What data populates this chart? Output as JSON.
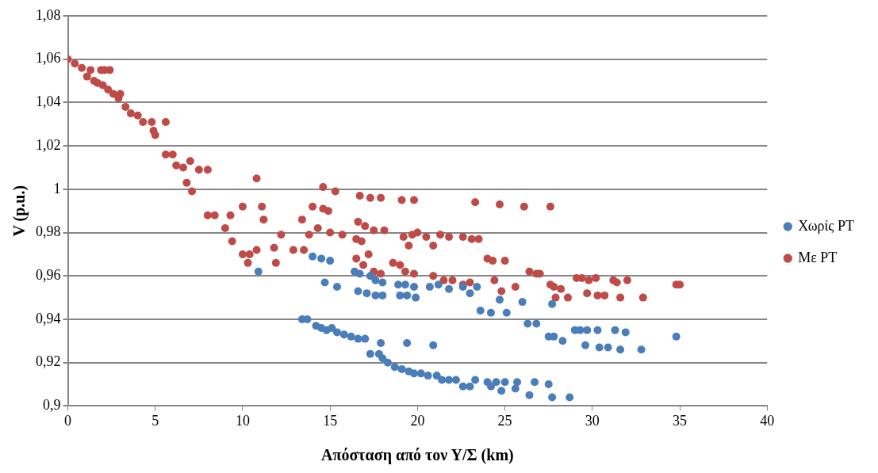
{
  "chart_data": {
    "type": "scatter",
    "xlabel": "Απόσταση από τον Υ/Σ (km)",
    "ylabel": "V (p.u.)",
    "xlim": [
      0,
      40
    ],
    "xticks": [
      0,
      5,
      10,
      15,
      20,
      25,
      30,
      35,
      40
    ],
    "ylim": [
      0.9,
      1.08
    ],
    "yticks": [
      {
        "value": 0.9,
        "label": "0,9"
      },
      {
        "value": 0.92,
        "label": "0,92"
      },
      {
        "value": 0.94,
        "label": "0,94"
      },
      {
        "value": 0.96,
        "label": "0,96"
      },
      {
        "value": 0.98,
        "label": "0,98"
      },
      {
        "value": 1,
        "label": "1"
      },
      {
        "value": 1.02,
        "label": "1,02"
      },
      {
        "value": 1.04,
        "label": "1,04"
      },
      {
        "value": 1.06,
        "label": "1,06"
      },
      {
        "value": 1.08,
        "label": "1,08"
      }
    ],
    "grid": "y",
    "legend": "right",
    "marker": "circle",
    "series": [
      {
        "name": "Χωρίς PT",
        "color": "#4a7ebb",
        "x": [
          13.4,
          13.7,
          14.2,
          14.5,
          14.8,
          15.1,
          15.4,
          15.8,
          16.2,
          16.6,
          17.0,
          17.3,
          17.8,
          18.0,
          17.9,
          18.3,
          18.7,
          19.1,
          19.5,
          19.4,
          19.8,
          20.2,
          20.6,
          20.9,
          21.1,
          21.4,
          21.8,
          22.2,
          22.6,
          23.0,
          23.3,
          24.0,
          24.2,
          24.5,
          24.8,
          25.0,
          25.6,
          25.7,
          26.4,
          26.7,
          27.5,
          27.7,
          28.7,
          10.9,
          14.0,
          14.5,
          15.0,
          14.7,
          15.4,
          16.4,
          16.7,
          17.3,
          17.6,
          18.0,
          16.6,
          17.1,
          17.6,
          18.0,
          18.9,
          19.3,
          19.8,
          19.0,
          19.4,
          19.9,
          20.7,
          21.2,
          21.8,
          22.6,
          23.4,
          23.0,
          23.6,
          24.2,
          24.7,
          25.1,
          26.0,
          26.3,
          26.8,
          27.5,
          27.7,
          27.8,
          28.3,
          29.0,
          29.3,
          29.7,
          29.6,
          30.3,
          30.4,
          30.9,
          31.3,
          31.6,
          31.9,
          32.8,
          34.8
        ],
        "values": [
          0.94,
          0.94,
          0.937,
          0.936,
          0.935,
          0.936,
          0.934,
          0.933,
          0.932,
          0.931,
          0.931,
          0.924,
          0.924,
          0.922,
          0.929,
          0.92,
          0.918,
          0.917,
          0.916,
          0.929,
          0.915,
          0.915,
          0.914,
          0.928,
          0.914,
          0.912,
          0.912,
          0.912,
          0.909,
          0.909,
          0.912,
          0.911,
          0.909,
          0.911,
          0.907,
          0.911,
          0.908,
          0.911,
          0.905,
          0.911,
          0.91,
          0.904,
          0.904,
          0.962,
          0.969,
          0.968,
          0.967,
          0.957,
          0.955,
          0.962,
          0.961,
          0.96,
          0.958,
          0.957,
          0.953,
          0.952,
          0.951,
          0.951,
          0.956,
          0.956,
          0.955,
          0.951,
          0.951,
          0.95,
          0.955,
          0.956,
          0.954,
          0.955,
          0.955,
          0.952,
          0.944,
          0.943,
          0.949,
          0.943,
          0.948,
          0.938,
          0.938,
          0.932,
          0.947,
          0.932,
          0.93,
          0.935,
          0.935,
          0.935,
          0.928,
          0.935,
          0.927,
          0.927,
          0.935,
          0.926,
          0.934,
          0.926,
          0.932
        ]
      },
      {
        "name": "Με PT",
        "color": "#be4b48",
        "x": [
          0,
          0.4,
          0.8,
          1.1,
          1.3,
          1.5,
          1.7,
          1.9,
          2.1,
          2.4,
          2.0,
          2.3,
          2.6,
          2.9,
          3.0,
          3.3,
          3.6,
          4.0,
          4.3,
          4.8,
          4.9,
          5.0,
          5.6,
          5.6,
          6.0,
          6.2,
          6.6,
          7.0,
          7.5,
          6.8,
          7.1,
          8.0,
          8.0,
          8.4,
          9.3,
          9.0,
          9.4,
          10.0,
          10.4,
          10.0,
          10.8,
          10.3,
          11.1,
          11.2,
          10.8,
          11.8,
          11.9,
          12.2,
          12.9,
          13.4,
          13.5,
          14.0,
          14.6,
          14.9,
          14.6,
          15.3,
          13.8,
          14.3,
          15.0,
          15.7,
          16.5,
          16.8,
          16.6,
          17.0,
          17.5,
          18.1,
          16.7,
          17.3,
          17.9,
          19.1,
          19.8,
          16.5,
          16.9,
          17.5,
          17.9,
          17.2,
          18.6,
          19.0,
          19.3,
          19.8,
          19.2,
          19.7,
          20.0,
          20.5,
          19.5,
          20.9,
          21.3,
          21.8,
          20.9,
          21.5,
          22.0,
          22.6,
          23.0,
          22.6,
          23.1,
          23.5,
          23.3,
          24.0,
          24.3,
          24.7,
          24.4,
          24.8,
          25.0,
          25.6,
          26.1,
          26.4,
          26.8,
          27.0,
          27.6,
          27.6,
          27.8,
          28.2,
          27.9,
          28.6,
          29.1,
          29.4,
          29.8,
          29.7,
          30.2,
          30.3,
          30.7,
          31.2,
          31.4,
          31.6,
          32.0,
          32.9,
          34.8,
          35.0
        ],
        "values": [
          1.06,
          1.058,
          1.056,
          1.052,
          1.055,
          1.05,
          1.049,
          1.055,
          1.055,
          1.055,
          1.048,
          1.046,
          1.044,
          1.042,
          1.044,
          1.038,
          1.035,
          1.034,
          1.031,
          1.031,
          1.027,
          1.025,
          1.031,
          1.016,
          1.016,
          1.011,
          1.01,
          1.013,
          1.009,
          1.003,
          0.999,
          1.009,
          0.988,
          0.988,
          0.988,
          0.982,
          0.976,
          0.97,
          0.97,
          0.992,
          0.972,
          0.966,
          0.992,
          0.986,
          1.005,
          0.973,
          0.966,
          0.979,
          0.972,
          0.986,
          0.972,
          0.992,
          0.991,
          0.99,
          1.001,
          0.999,
          0.979,
          0.982,
          0.98,
          0.979,
          0.977,
          0.976,
          0.985,
          0.983,
          0.981,
          0.981,
          0.997,
          0.996,
          0.996,
          0.995,
          0.995,
          0.968,
          0.965,
          0.962,
          0.961,
          0.97,
          0.966,
          0.965,
          0.962,
          0.961,
          0.978,
          0.979,
          0.98,
          0.978,
          0.974,
          0.974,
          0.979,
          0.978,
          0.96,
          0.958,
          0.958,
          0.956,
          0.957,
          0.978,
          0.977,
          0.977,
          0.994,
          0.968,
          0.967,
          0.993,
          0.958,
          0.953,
          0.967,
          0.955,
          0.992,
          0.962,
          0.961,
          0.961,
          0.992,
          0.956,
          0.955,
          0.954,
          0.95,
          0.95,
          0.959,
          0.959,
          0.958,
          0.952,
          0.959,
          0.951,
          0.951,
          0.958,
          0.957,
          0.95,
          0.958,
          0.95,
          0.956,
          0.956
        ]
      }
    ]
  }
}
